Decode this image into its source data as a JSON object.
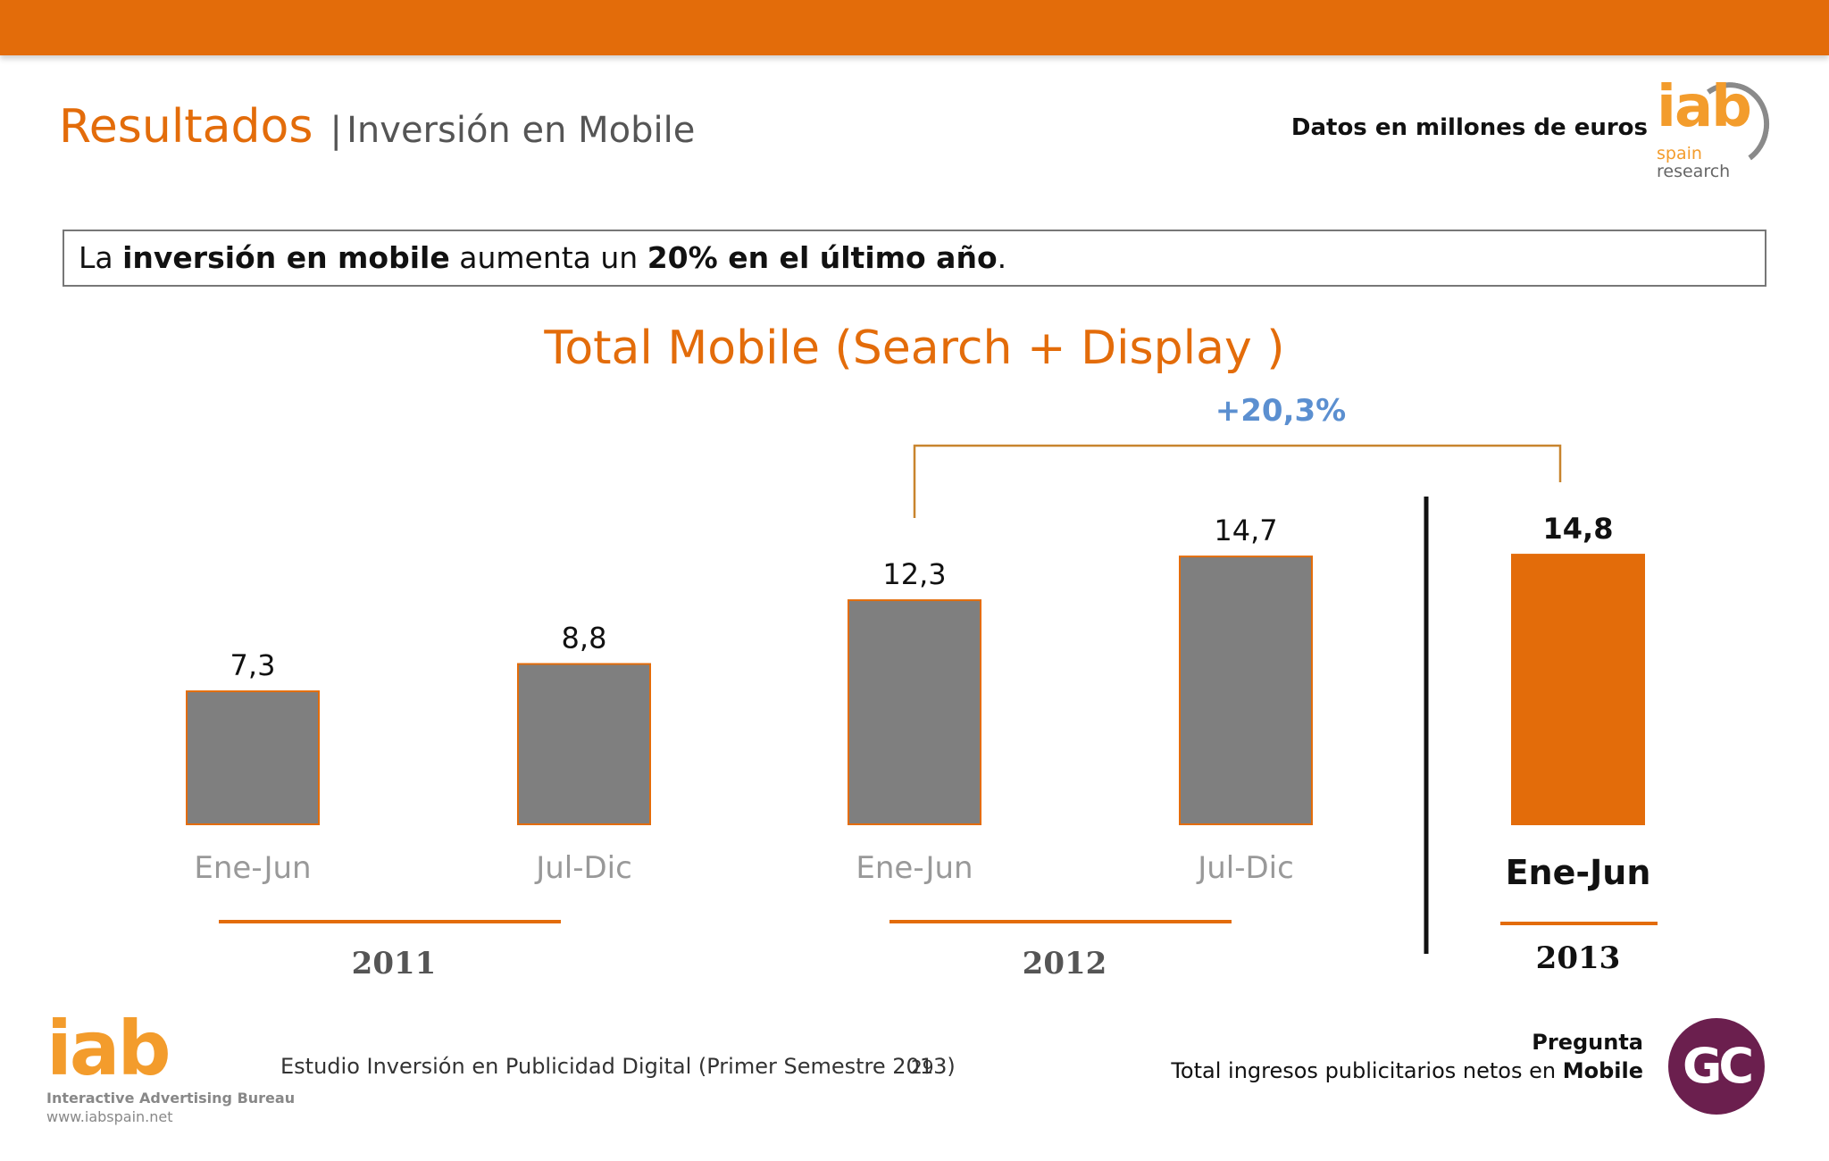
{
  "header": {
    "title_main": "Resultados",
    "title_separator": "|",
    "title_sub": "Inversión en Mobile",
    "units_note": "Datos en millones de euros"
  },
  "logo_top": {
    "letters": "iab",
    "line2": "spain",
    "line3": "research"
  },
  "headline": {
    "part1": "La ",
    "bold1": "inversión en mobile",
    "part2": " aumenta un ",
    "bold2": "20% en el último año",
    "part3": "."
  },
  "chart_data": {
    "type": "bar",
    "title": "Total Mobile (Search + Display )",
    "categories": [
      "Ene-Jun",
      "Jul-Dic",
      "Ene-Jun",
      "Jul-Dic",
      "Ene-Jun"
    ],
    "values": [
      7.3,
      8.8,
      12.3,
      14.7,
      14.8
    ],
    "value_labels": [
      "7,3",
      "8,8",
      "12,3",
      "14,7",
      "14,8"
    ],
    "groups": [
      {
        "label": "2011",
        "categories": [
          0,
          1
        ]
      },
      {
        "label": "2012",
        "categories": [
          2,
          3
        ]
      },
      {
        "label": "2013",
        "categories": [
          4
        ]
      }
    ],
    "highlight_index": 4,
    "annotation": {
      "text": "+20,3%",
      "from_index": 2,
      "to_index": 4
    },
    "colors": {
      "default_bar": "#7f7f7f",
      "bar_border": "#e36c0a",
      "highlight_bar": "#e36c0a",
      "annotation": "#5b8fd0"
    },
    "ylim": [
      0,
      16
    ],
    "xlabel": "",
    "ylabel": ""
  },
  "footer": {
    "logo_letters": "iab",
    "logo_line2": "Interactive Advertising Bureau",
    "logo_line3": "www.iabspain.net",
    "study": "Estudio Inversión en Publicidad Digital (Primer Semestre 2013)",
    "page": "29",
    "question_title": "Pregunta",
    "question_text": "Total ingresos publicitarios netos en ",
    "question_bold": "Mobile",
    "gc_logo": "GC"
  }
}
